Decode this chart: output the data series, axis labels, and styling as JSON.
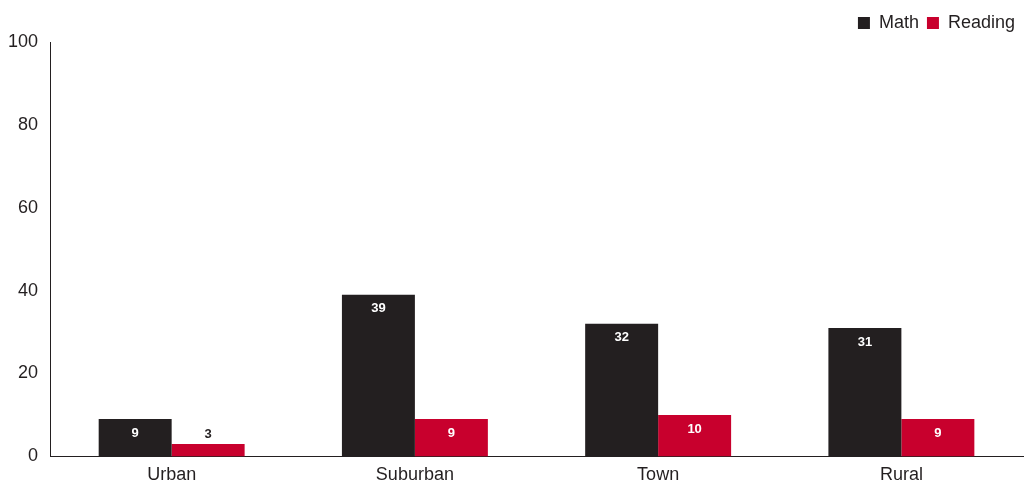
{
  "chart_data": {
    "type": "bar",
    "categories": [
      "Urban",
      "Suburban",
      "Town",
      "Rural"
    ],
    "series": [
      {
        "name": "Math",
        "color": "#231f20",
        "values": [
          9,
          39,
          32,
          31
        ]
      },
      {
        "name": "Reading",
        "color": "#c8002d",
        "values": [
          3,
          9,
          10,
          9
        ]
      }
    ],
    "ylim": [
      0,
      100
    ],
    "yticks": [
      0,
      20,
      40,
      60,
      80,
      100
    ],
    "grid": false,
    "legend": "top right",
    "data_labels": true
  }
}
